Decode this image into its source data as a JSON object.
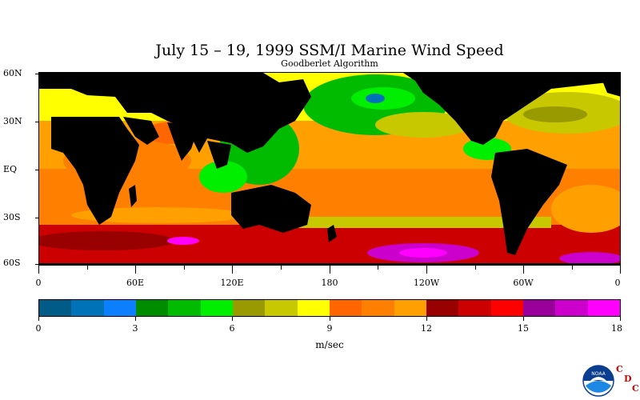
{
  "title": "July 15 – 19, 1999 SSM/I Marine Wind Speed",
  "subtitle": "Goodberlet Algorithm",
  "lat_labels": [
    "60N",
    "30N",
    "EQ",
    "30S",
    "60S"
  ],
  "lon_labels": [
    "0",
    "60E",
    "120E",
    "180",
    "120W",
    "60W",
    "0"
  ],
  "colorbar": {
    "colors": [
      "#005b86",
      "#0072b8",
      "#0c7fff",
      "#008c00",
      "#00bb00",
      "#00ee00",
      "#999900",
      "#c8c800",
      "#ffff00",
      "#ff6600",
      "#ff8000",
      "#ff9f00",
      "#990000",
      "#cc0000",
      "#ff0000",
      "#990099",
      "#cc00cc",
      "#ff00ff"
    ],
    "tick_labels": [
      "0",
      "3",
      "6",
      "9",
      "12",
      "15",
      "18"
    ],
    "units": "m/sec",
    "min": 0,
    "max": 18
  },
  "logo": {
    "name": "noaa-logo",
    "emblem_text": "NOAA",
    "letters": [
      "C",
      "D",
      "C"
    ]
  },
  "colors": {
    "land": "#000000",
    "background": "#ffffff"
  }
}
